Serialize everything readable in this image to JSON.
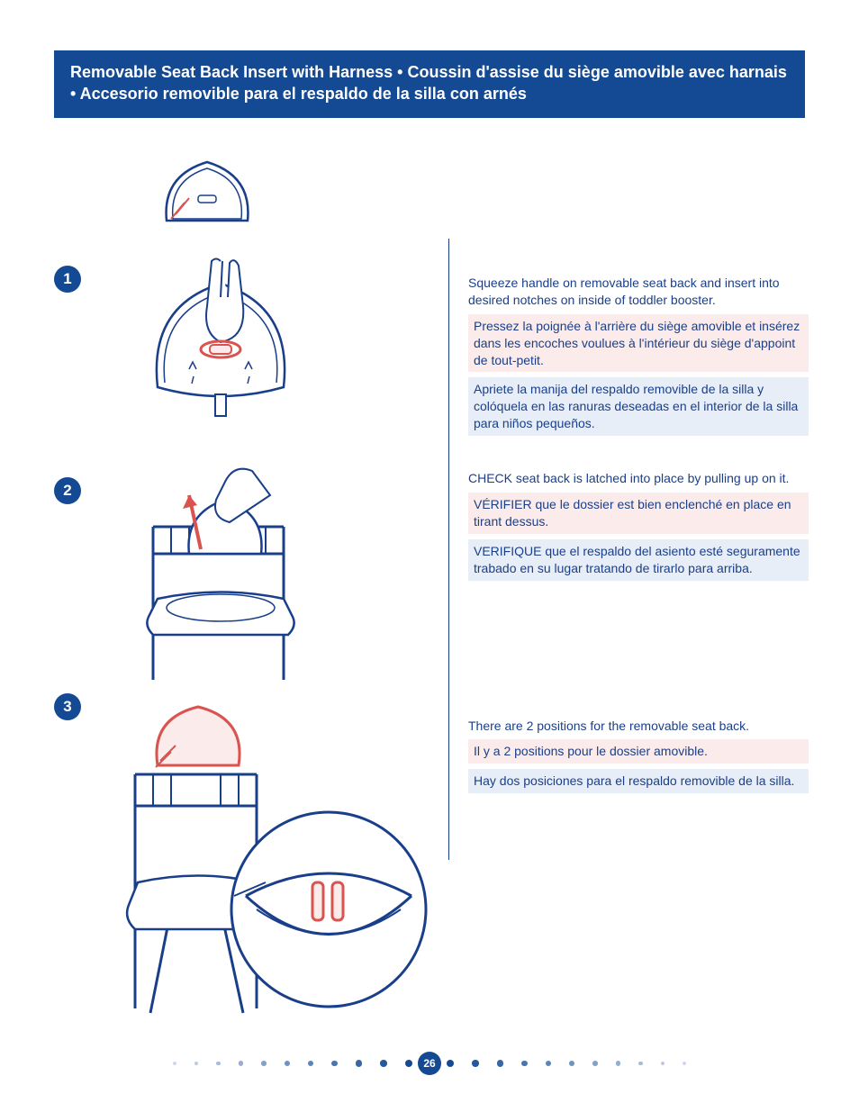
{
  "header": {
    "title_en": "Removable Seat Back Insert with Harness",
    "title_fr": "Coussin d'assise du siège amovible avec harnais",
    "title_es": "Accesorio removible para el respaldo de la silla con arnés",
    "separator": " • "
  },
  "colors": {
    "primary": "#144a93",
    "text": "#1a3f8a",
    "highlight": "#d9534f",
    "fr_bg": "#fbeceb",
    "es_bg": "#e8eef7",
    "white": "#ffffff",
    "dot_light": "#cdd9ea",
    "dot_mid": "#7a9bc7"
  },
  "steps": [
    {
      "num": "1",
      "en": "Squeeze handle on removable seat back and insert into desired notches on inside of toddler booster.",
      "fr": "Pressez la poignée à l'arrière du siège amovible et insérez dans les encoches voulues à l'intérieur du siège d'appoint de tout-petit.",
      "es": "Apriete la manija del respaldo removible de la silla y colóquela en las ranuras deseadas en el interior de la silla para niños pequeños.",
      "illustration": "seat-back-squeeze"
    },
    {
      "num": "2",
      "en": "CHECK seat back is latched into place by pulling up on it.",
      "fr": "VÉRIFIER que le dossier est bien enclenché en place en tirant dessus.",
      "es": "VERIFIQUE que el respaldo del asiento esté seguramente trabado en su lugar tratando de tirarlo para arriba.",
      "illustration": "seat-back-check-pull"
    },
    {
      "num": "3",
      "en": "There are 2 positions for the removable seat back.",
      "fr": "Il y a 2 positions pour le dossier amovible.",
      "es": "Hay dos posiciones para el respaldo removible de la silla.",
      "illustration": "seat-back-positions"
    }
  ],
  "page_number": "26",
  "footer": {
    "dot_count_each_side": 11
  }
}
